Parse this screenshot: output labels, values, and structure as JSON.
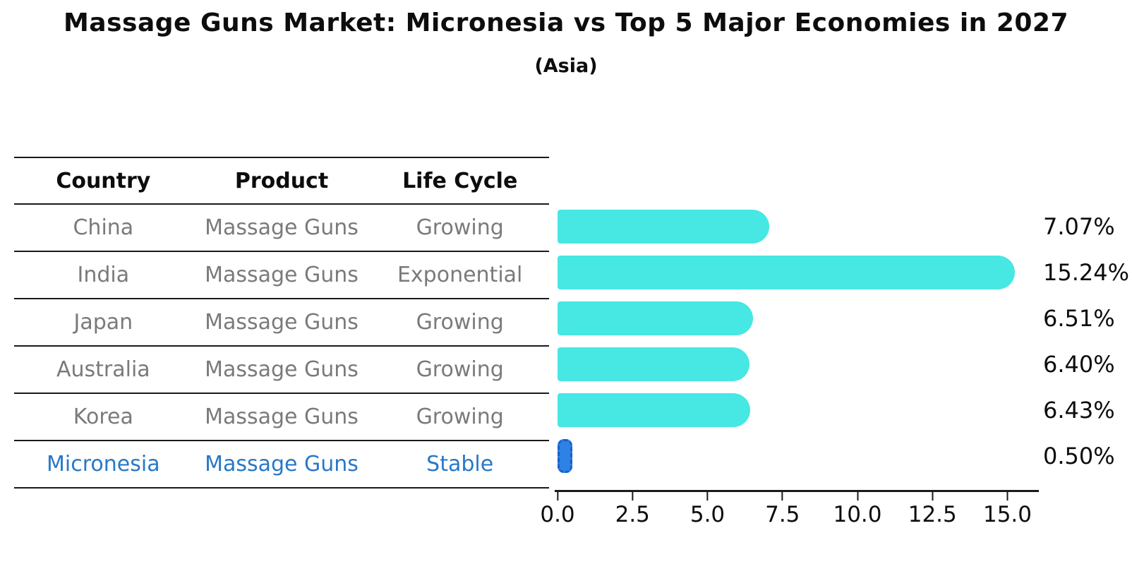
{
  "header": {
    "title": "Massage Guns Market: Micronesia vs Top 5 Major Economies in 2027",
    "subtitle": "(Asia)"
  },
  "table": {
    "headers": [
      "Country",
      "Product",
      "Life Cycle"
    ],
    "text_color": "#7a7a7a",
    "highlight_text_color": "#2878c8",
    "rows": [
      {
        "country": "China",
        "product": "Massage Guns",
        "life_cycle": "Growing",
        "highlight": false
      },
      {
        "country": "India",
        "product": "Massage Guns",
        "life_cycle": "Exponential",
        "highlight": false
      },
      {
        "country": "Japan",
        "product": "Massage Guns",
        "life_cycle": "Growing",
        "highlight": false
      },
      {
        "country": "Australia",
        "product": "Massage Guns",
        "life_cycle": "Growing",
        "highlight": false
      },
      {
        "country": "Korea",
        "product": "Massage Guns",
        "life_cycle": "Growing",
        "highlight": false
      },
      {
        "country": "Micronesia",
        "product": "Massage Guns",
        "life_cycle": "Stable",
        "highlight": true
      }
    ]
  },
  "chart_data": {
    "type": "bar",
    "orientation": "horizontal",
    "title": "Massage Guns Market: Micronesia vs Top 5 Major Economies in 2027 (Asia)",
    "categories": [
      "China",
      "India",
      "Japan",
      "Australia",
      "Korea",
      "Micronesia"
    ],
    "values": [
      7.07,
      15.24,
      6.51,
      6.4,
      6.43,
      0.5
    ],
    "value_labels": [
      "7.07%",
      "15.24%",
      "6.51%",
      "6.40%",
      "6.43%",
      "0.50%"
    ],
    "x_ticks": [
      "0.0",
      "2.5",
      "5.0",
      "7.5",
      "10.0",
      "12.5",
      "15.0"
    ],
    "xlim": [
      0,
      16
    ],
    "grid": false,
    "bar_color": "#47e7e3",
    "highlight_index": 5,
    "highlight_color": "#2e82e5",
    "highlight_border_color": "#1a5fc8",
    "axis_color": "#1a1a1a"
  }
}
